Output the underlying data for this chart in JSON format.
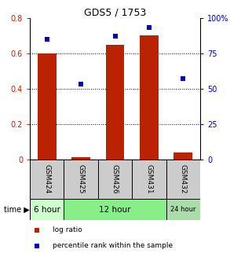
{
  "title": "GDS5 / 1753",
  "samples": [
    "GSM424",
    "GSM425",
    "GSM426",
    "GSM431",
    "GSM432"
  ],
  "log_ratio": [
    0.6,
    0.01,
    0.65,
    0.7,
    0.04
  ],
  "percentile_rank": [
    85,
    53,
    87,
    93,
    57
  ],
  "left_ylim": [
    0,
    0.8
  ],
  "right_ylim": [
    0,
    100
  ],
  "left_yticks": [
    0,
    0.2,
    0.4,
    0.6,
    0.8
  ],
  "right_yticks": [
    0,
    25,
    50,
    75,
    100
  ],
  "right_yticklabels": [
    "0",
    "25",
    "50",
    "75",
    "100%"
  ],
  "left_yticklabels": [
    "0",
    "0.2",
    "0.4",
    "0.6",
    "0.8"
  ],
  "bar_color": "#bb2200",
  "dot_color": "#0000bb",
  "time_groups": [
    {
      "label": "6 hour",
      "cols": [
        0
      ],
      "bg": "#ccffcc"
    },
    {
      "label": "12 hour",
      "cols": [
        1,
        2,
        3
      ],
      "bg": "#88ee88"
    },
    {
      "label": "24 hour",
      "cols": [
        4
      ],
      "bg": "#aaddaa"
    }
  ],
  "sample_bg": "#cccccc",
  "background_color": "#ffffff",
  "bar_width": 0.55,
  "legend_items": [
    {
      "label": "log ratio",
      "color": "#bb2200"
    },
    {
      "label": "percentile rank within the sample",
      "color": "#0000bb"
    }
  ],
  "grid_dotted_vals": [
    0.2,
    0.4,
    0.6
  ],
  "title_fontsize": 9,
  "tick_fontsize": 7,
  "label_fontsize": 7,
  "sample_fontsize": 6.5,
  "time_fontsize": 7.5,
  "legend_fontsize": 6.5
}
